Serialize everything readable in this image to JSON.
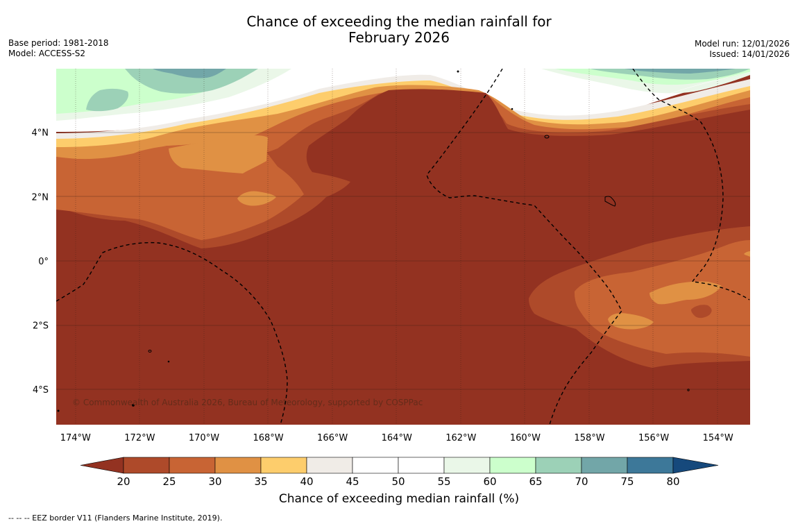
{
  "title": {
    "line1": "Chance of exceeding the median rainfall for",
    "line2": "February 2026"
  },
  "meta_left": {
    "base_period": "Base period: 1981-2018",
    "model": "Model: ACCESS-S2"
  },
  "meta_right": {
    "model_run": "Model run: 12/01/2026",
    "issued": "Issued: 14/01/2026"
  },
  "map": {
    "lat_labels": [
      {
        "lat": 4,
        "label": "4°N"
      },
      {
        "lat": 2,
        "label": "2°N"
      },
      {
        "lat": 0,
        "label": "0°"
      },
      {
        "lat": -2,
        "label": "2°S"
      },
      {
        "lat": -4,
        "label": "4°S"
      }
    ],
    "lon_labels": [
      {
        "lon": -174,
        "label": "174°W"
      },
      {
        "lon": -172,
        "label": "172°W"
      },
      {
        "lon": -170,
        "label": "170°W"
      },
      {
        "lon": -168,
        "label": "168°W"
      },
      {
        "lon": -166,
        "label": "166°W"
      },
      {
        "lon": -164,
        "label": "164°W"
      },
      {
        "lon": -162,
        "label": "162°W"
      },
      {
        "lon": -160,
        "label": "160°W"
      },
      {
        "lon": -158,
        "label": "158°W"
      },
      {
        "lon": -156,
        "label": "156°W"
      },
      {
        "lon": -154,
        "label": "154°W"
      }
    ],
    "copyright": "© Commonwealth of Australia 2026, Bureau of Meteorology, supported by COSPPac"
  },
  "colorbar": {
    "ticks": [
      "20",
      "25",
      "30",
      "35",
      "40",
      "45",
      "50",
      "55",
      "60",
      "65",
      "70",
      "75",
      "80"
    ],
    "colors": [
      "#ae4a2a",
      "#c86434",
      "#e09144",
      "#fdcd6c",
      "#f0ece7",
      "#ffffff",
      "#ffffff",
      "#eaf7e8",
      "#ccffcc",
      "#9cd1b7",
      "#72a6a8",
      "#3d7899"
    ],
    "under_color": "#933221",
    "over_color": "#16497c",
    "label": "Chance of exceeding median rainfall (%)"
  },
  "footnote": "--  --  -- EEZ border V11 (Flanders Marine Institute, 2019)."
}
